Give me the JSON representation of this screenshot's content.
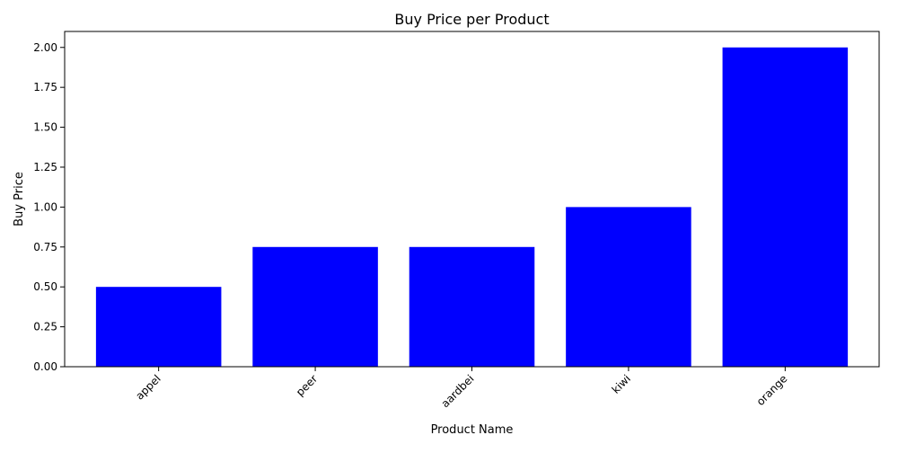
{
  "chart_data": {
    "type": "bar",
    "title": "Buy Price per Product",
    "xlabel": "Product Name",
    "ylabel": "Buy Price",
    "categories": [
      "appel",
      "peer",
      "aardbei",
      "kiwi",
      "orange"
    ],
    "values": [
      0.5,
      0.75,
      0.75,
      1.0,
      2.0
    ],
    "ylim": [
      0,
      2.1
    ],
    "yticks": [
      "0.00",
      "0.25",
      "0.50",
      "0.75",
      "1.00",
      "1.25",
      "1.50",
      "1.75",
      "2.00"
    ],
    "bar_color": "#0000ff",
    "grid": false,
    "legend": false
  }
}
